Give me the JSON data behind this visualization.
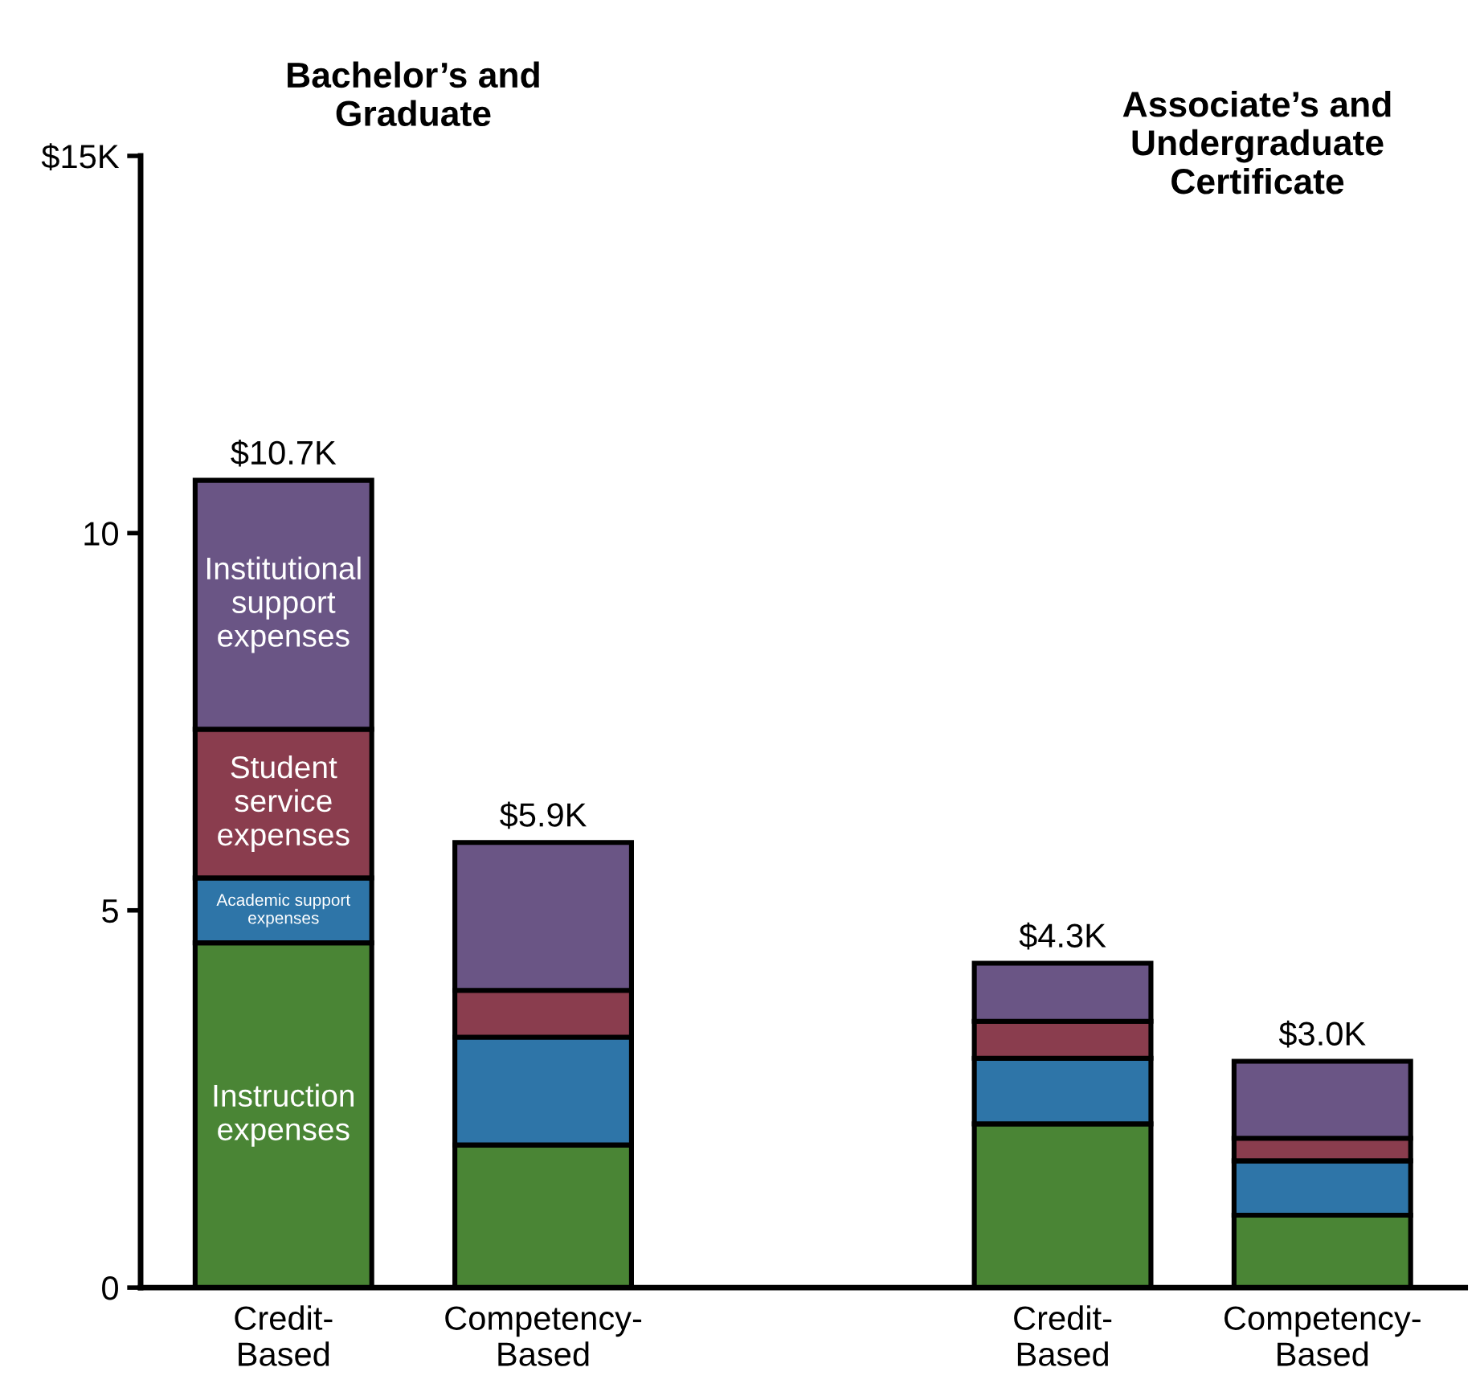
{
  "chart_data": {
    "type": "bar",
    "stacked": true,
    "categories": [
      "Credit-\nBased",
      "Competency-\nBased",
      null,
      "Credit-\nBased",
      "Competency-\nBased"
    ],
    "series": [
      {
        "name": "Instruction expenses",
        "color": "#4a8535",
        "values": [
          4.57,
          1.89,
          null,
          2.17,
          0.96
        ]
      },
      {
        "name": "Academic support expenses",
        "color": "#2e75a8",
        "values": [
          0.86,
          1.43,
          null,
          0.87,
          0.72
        ]
      },
      {
        "name": "Student service expenses",
        "color": "#8a3d4e",
        "values": [
          1.97,
          0.62,
          null,
          0.49,
          0.3
        ]
      },
      {
        "name": "Institutional support expenses",
        "color": "#6a5585",
        "values": [
          3.3,
          1.96,
          null,
          0.77,
          1.02
        ]
      }
    ],
    "totals": [
      "$10.7K",
      "$5.9K",
      null,
      "$4.3K",
      "$3.0K"
    ],
    "annotations": [
      "Bachelor’s and\nGraduate",
      "Associate’s and\nUndergraduate\nCertificate"
    ],
    "ylim": [
      0,
      15
    ],
    "yticks": [
      0,
      5,
      10,
      {
        "value": 15,
        "label": "$15K"
      }
    ],
    "grid": false,
    "legend": false
  }
}
